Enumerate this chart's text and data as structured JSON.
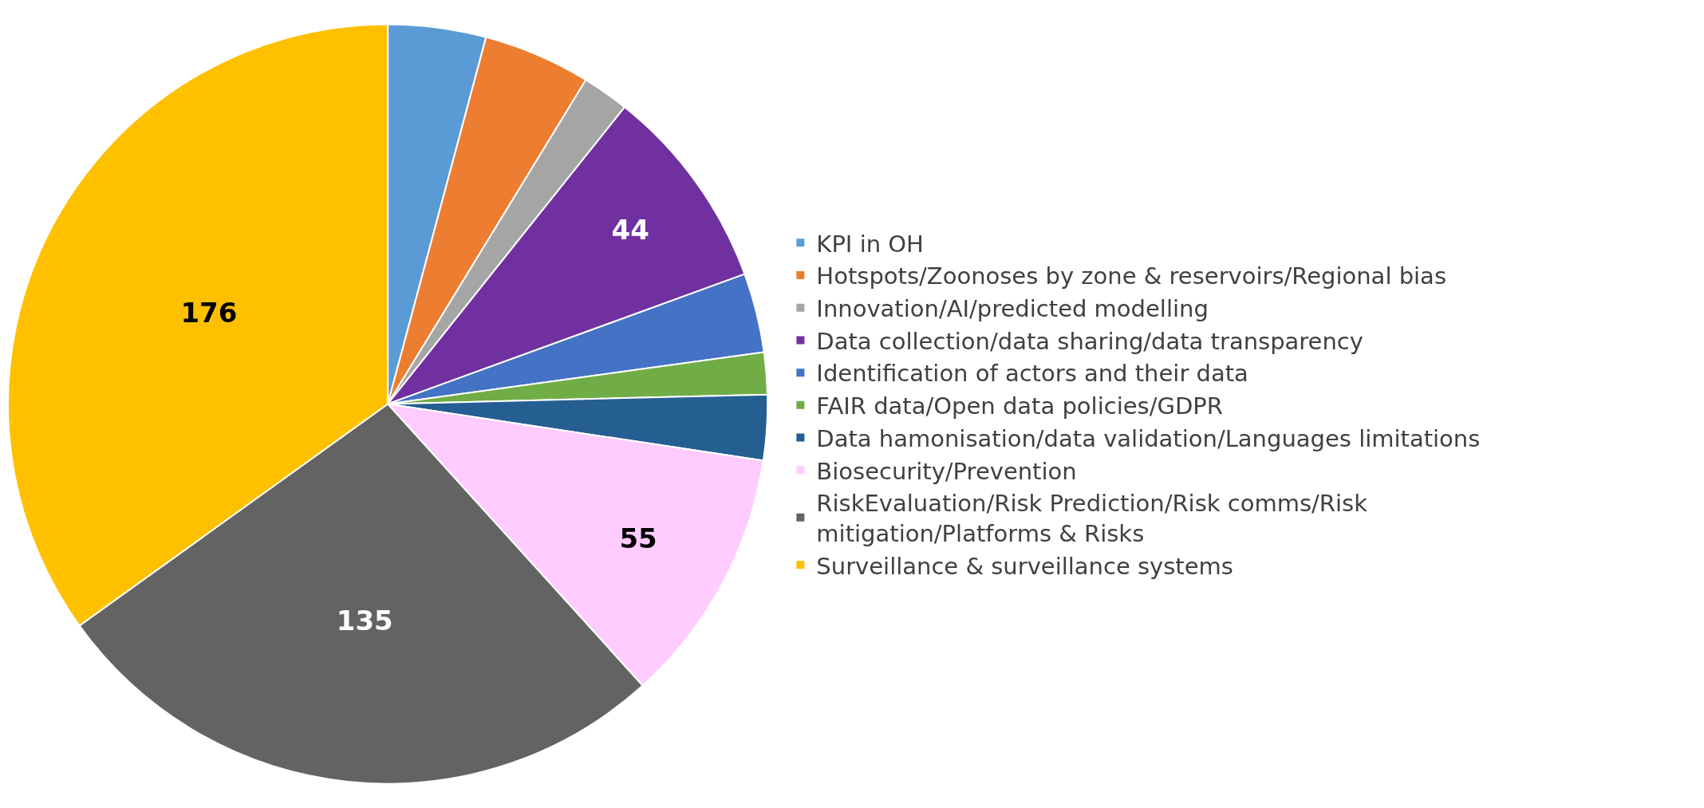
{
  "chart_data": {
    "type": "pie",
    "categories": [
      "KPI in OH",
      "Hotspots/Zoonoses by zone & reservoirs/Regional bias",
      "Innovation/AI/predicted modelling",
      "Data collection/data sharing/data transparency",
      "Identification of actors and their data",
      "FAIR data/Open data policies/GDPR",
      "Data hamonisation/data validation/Languages limitations",
      "Biosecurity/Prevention",
      "RiskEvaluation/Risk Prediction/Risk comms/Risk mitigation/Platforms & Risks",
      "Surveillance & surveillance systems"
    ],
    "values": [
      21,
      23,
      10,
      44,
      17,
      9,
      14,
      55,
      135,
      176
    ],
    "colors": [
      "#5b9bd5",
      "#ed7d31",
      "#a5a5a5",
      "#7030a0",
      "#4472c4",
      "#70ad47",
      "#255e91",
      "#ffccff",
      "#636363",
      "#ffc000"
    ],
    "value_labels": [
      null,
      null,
      null,
      "44",
      null,
      null,
      null,
      "55",
      "135",
      "176"
    ],
    "legend": "right"
  }
}
